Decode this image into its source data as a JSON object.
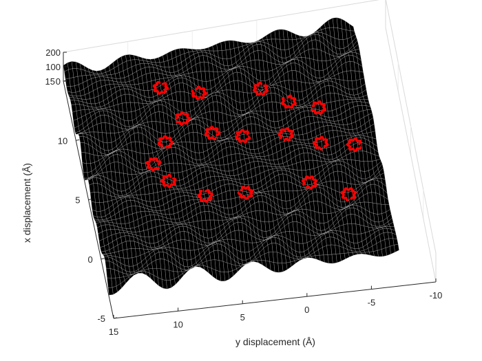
{
  "chart_data": {
    "type": "surface",
    "title": "",
    "xlabel": "x displacement (Å)",
    "ylabel": "y displacement (Å)",
    "zlabel": "",
    "xlim": [
      -5,
      15
    ],
    "ylim": [
      -10,
      15
    ],
    "zlim": [
      0,
      200
    ],
    "x_ticks": [
      "-5",
      "0",
      "5",
      "10",
      "15"
    ],
    "y_ticks": [
      "15",
      "10",
      "5",
      "0",
      "-5",
      "-10"
    ],
    "z_ticks": [
      "0",
      "100",
      "200"
    ],
    "surface_color": "#000000",
    "mesh_color": "#bfbfbf",
    "trajectory_color": "#ff0000",
    "grid": true,
    "trajectories": [
      {
        "x": 12.2,
        "y": 8.0
      },
      {
        "x": 11.3,
        "y": 5.2
      },
      {
        "x": 9.6,
        "y": 6.8
      },
      {
        "x": 8.2,
        "y": 8.4
      },
      {
        "x": 8.0,
        "y": 4.8
      },
      {
        "x": 7.1,
        "y": 2.6
      },
      {
        "x": 10.3,
        "y": 0.6
      },
      {
        "x": 9.4,
        "y": -1.4
      },
      {
        "x": 8.4,
        "y": -3.5
      },
      {
        "x": 6.4,
        "y": -0.6
      },
      {
        "x": 5.9,
        "y": -3.2
      },
      {
        "x": 4.8,
        "y": -5.6
      },
      {
        "x": 4.4,
        "y": 8.9
      },
      {
        "x": 2.6,
        "y": 6.4
      },
      {
        "x": 2.5,
        "y": 3.3
      },
      {
        "x": 3.2,
        "y": -1.8
      },
      {
        "x": 2.0,
        "y": -4.6
      },
      {
        "x": 5.7,
        "y": 9.8
      }
    ]
  }
}
